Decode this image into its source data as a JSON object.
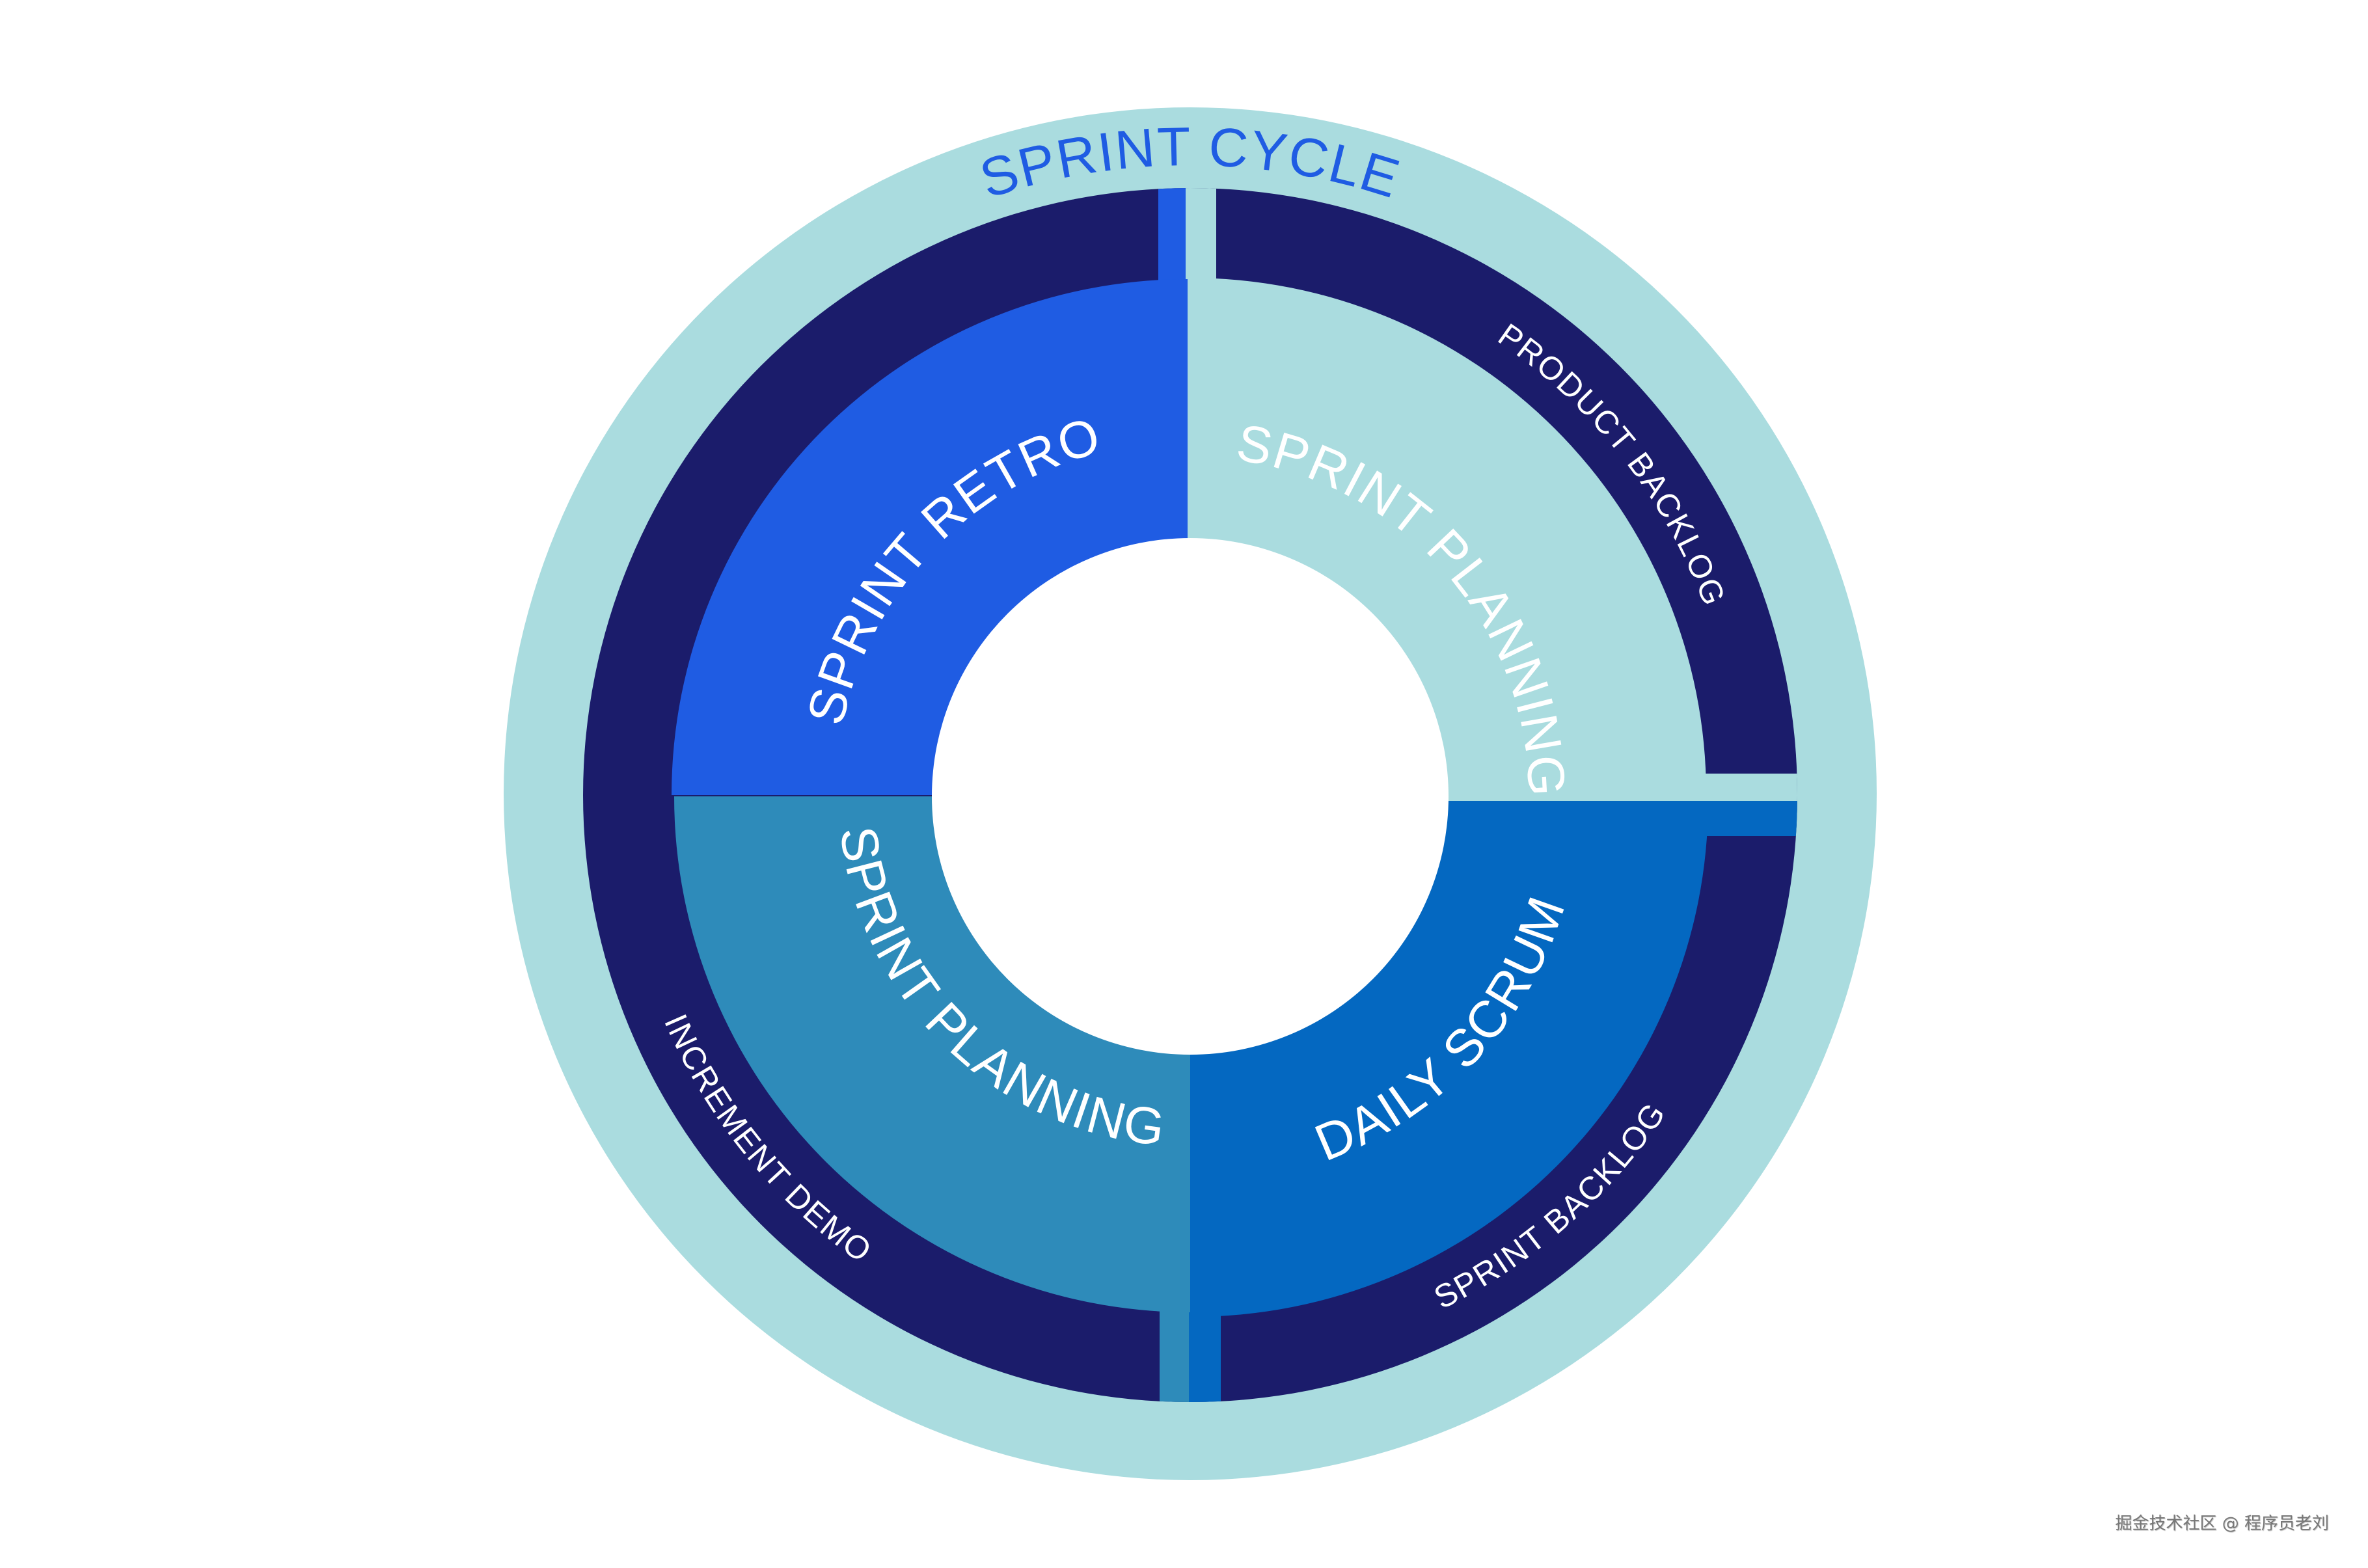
{
  "title": "SPRINT CYCLE",
  "colors": {
    "outer_ring": "#aadcdf",
    "navy_ring": "#1b1c6b",
    "title": "#1f5ce3",
    "text_light": "#ffffff"
  },
  "quadrants": [
    {
      "label": "SPRINT RETRO",
      "position": "top-left",
      "color": "#1f5ce3"
    },
    {
      "label": "SPRINT PLANNING",
      "position": "top-right",
      "color": "#aadcdf"
    },
    {
      "label": "DAILY SCRUM",
      "position": "bottom-right",
      "color": "#0468c1"
    },
    {
      "label": "SPRINT PLANNING",
      "position": "bottom-left",
      "color": "#2e8bba"
    }
  ],
  "ring_labels": [
    {
      "label": "PRODUCT BACKLOG",
      "position": "top-right"
    },
    {
      "label": "SPRINT BACKLOG",
      "position": "bottom-right"
    },
    {
      "label": "INCREMENT DEMO",
      "position": "bottom-left"
    }
  ],
  "watermark": "掘金技术社区 @ 程序员老刘"
}
